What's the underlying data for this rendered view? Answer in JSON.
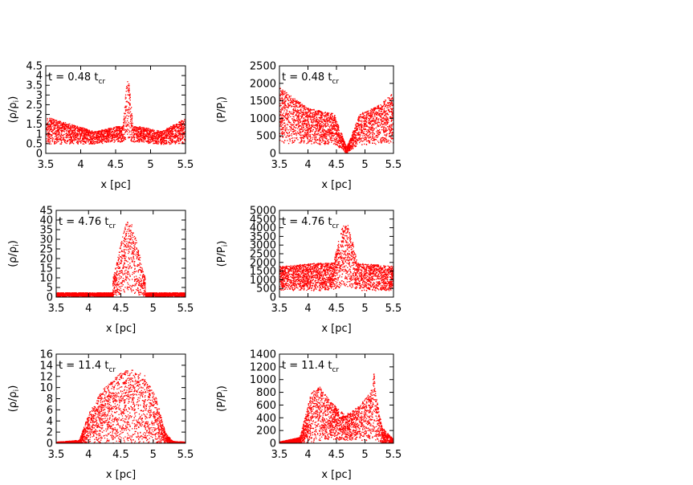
{
  "colors": {
    "points": "#ff0000",
    "axis": "#000000",
    "background": "#ffffff"
  },
  "chart_data": [
    {
      "id": "rho_t048",
      "type": "scatter",
      "annotation": "t = 0.48 t",
      "annotation_sub": "cr",
      "xlabel": "x [pc]",
      "ylabel": "(ρ/ρ",
      "ylabel_sub": "i",
      "ylabel_close": ")",
      "xlim": [
        3.5,
        5.5
      ],
      "ylim": [
        0,
        4.5
      ],
      "xticks": [
        "3.5",
        "4",
        "4.5",
        "5",
        "5.5"
      ],
      "yticks": [
        "0",
        "0.5",
        "1",
        "1.5",
        "2",
        "2.5",
        "3",
        "3.5",
        "4",
        "4.5"
      ],
      "profile": {
        "background": [
          [
            3.5,
            0.5,
            1.9
          ],
          [
            4.2,
            0.5,
            1.15
          ],
          [
            4.5,
            0.6,
            1.4
          ],
          [
            4.85,
            0.6,
            1.4
          ],
          [
            5.15,
            0.45,
            1.15
          ],
          [
            5.5,
            0.55,
            1.85
          ]
        ],
        "peaks": [
          [
            4.67,
            0.06,
            3.8
          ]
        ]
      }
    },
    {
      "id": "p_t048",
      "type": "scatter",
      "annotation": "t = 0.48 t",
      "annotation_sub": "cr",
      "xlabel": "x [pc]",
      "ylabel": "(P/P",
      "ylabel_sub": "i",
      "ylabel_close": ")",
      "xlim": [
        3.5,
        5.5
      ],
      "ylim": [
        0,
        2500
      ],
      "xticks": [
        "3.5",
        "4",
        "4.5",
        "5",
        "5.5"
      ],
      "yticks": [
        "0",
        "500",
        "1000",
        "1500",
        "2000",
        "2500"
      ],
      "profile": {
        "background": [
          [
            3.5,
            300,
            1900
          ],
          [
            4.0,
            280,
            1300
          ],
          [
            4.45,
            250,
            1150
          ],
          [
            4.6,
            120,
            500
          ],
          [
            4.67,
            0,
            180
          ],
          [
            4.75,
            120,
            500
          ],
          [
            4.9,
            250,
            1150
          ],
          [
            5.2,
            280,
            1350
          ],
          [
            5.5,
            300,
            1750
          ]
        ],
        "peaks": []
      }
    },
    {
      "id": "rho_t476",
      "type": "scatter",
      "annotation": "t = 4.76 t",
      "annotation_sub": "cr",
      "xlabel": "x [pc]",
      "ylabel": "(ρ/ρ",
      "ylabel_sub": "i",
      "ylabel_close": ")",
      "xlim": [
        3.5,
        5.5
      ],
      "ylim": [
        0,
        45
      ],
      "xticks": [
        "3.5",
        "4",
        "4.5",
        "5",
        "5.5"
      ],
      "yticks": [
        "0",
        "5",
        "10",
        "15",
        "20",
        "25",
        "30",
        "35",
        "40",
        "45"
      ],
      "profile": {
        "background": [
          [
            3.5,
            0.5,
            2.5
          ],
          [
            5.5,
            0.5,
            2.5
          ]
        ],
        "peaks": [
          [
            4.62,
            0.18,
            40
          ]
        ]
      }
    },
    {
      "id": "p_t476",
      "type": "scatter",
      "annotation": "t = 4.76 t",
      "annotation_sub": "cr",
      "xlabel": "x [pc]",
      "ylabel": "(P/P",
      "ylabel_sub": "i",
      "ylabel_close": ")",
      "xlim": [
        3.5,
        5.5
      ],
      "ylim": [
        0,
        5000
      ],
      "xticks": [
        "3.5",
        "4",
        "4.5",
        "5",
        "5.5"
      ],
      "yticks": [
        "0",
        "500",
        "1000",
        "1500",
        "2000",
        "2500",
        "3000",
        "3500",
        "4000",
        "4500",
        "5000"
      ],
      "profile": {
        "background": [
          [
            3.5,
            400,
            1800
          ],
          [
            4.2,
            400,
            2000
          ],
          [
            4.5,
            400,
            2000
          ],
          [
            4.85,
            400,
            2000
          ],
          [
            5.5,
            400,
            1800
          ]
        ],
        "peaks": [
          [
            4.65,
            0.2,
            4300
          ]
        ]
      }
    },
    {
      "id": "rho_t114",
      "type": "scatter",
      "annotation": "t = 11.4 t",
      "annotation_sub": "cr",
      "xlabel": "x [pc]",
      "ylabel": "(ρ/ρ",
      "ylabel_sub": "i",
      "ylabel_close": ")",
      "xlim": [
        3.5,
        5.5
      ],
      "ylim": [
        0,
        16
      ],
      "xticks": [
        "3.5",
        "4",
        "4.5",
        "5",
        "5.5"
      ],
      "yticks": [
        "0",
        "2",
        "4",
        "6",
        "8",
        "10",
        "12",
        "14",
        "16"
      ],
      "profile": {
        "background": [
          [
            3.5,
            0,
            0.3
          ],
          [
            3.85,
            0,
            0.6
          ],
          [
            4.0,
            0,
            5.5
          ],
          [
            4.2,
            0,
            9.5
          ],
          [
            4.45,
            0,
            12.5
          ],
          [
            4.65,
            0,
            13.5
          ],
          [
            4.85,
            0,
            12.5
          ],
          [
            5.05,
            0,
            8
          ],
          [
            5.18,
            0,
            2
          ],
          [
            5.3,
            0,
            0.4
          ],
          [
            5.5,
            0,
            0.3
          ]
        ],
        "peaks": []
      }
    },
    {
      "id": "p_t114",
      "type": "scatter",
      "annotation": "t = 11.4 t",
      "annotation_sub": "cr",
      "xlabel": "x [pc]",
      "ylabel": "(P/P",
      "ylabel_sub": "i",
      "ylabel_close": ")",
      "xlim": [
        3.5,
        5.5
      ],
      "ylim": [
        0,
        1400
      ],
      "xticks": [
        "3.5",
        "4",
        "4.5",
        "5",
        "5.5"
      ],
      "yticks": [
        "0",
        "200",
        "400",
        "600",
        "800",
        "1000",
        "1200",
        "1400"
      ],
      "profile": {
        "background": [
          [
            3.5,
            0,
            30
          ],
          [
            3.85,
            0,
            100
          ],
          [
            4.05,
            20,
            800
          ],
          [
            4.2,
            50,
            900
          ],
          [
            4.4,
            50,
            650
          ],
          [
            4.65,
            50,
            450
          ],
          [
            4.9,
            50,
            600
          ],
          [
            5.15,
            50,
            900
          ],
          [
            5.3,
            0,
            250
          ],
          [
            5.5,
            0,
            60
          ]
        ],
        "peaks": [
          [
            5.15,
            0.04,
            1100
          ]
        ]
      }
    }
  ]
}
